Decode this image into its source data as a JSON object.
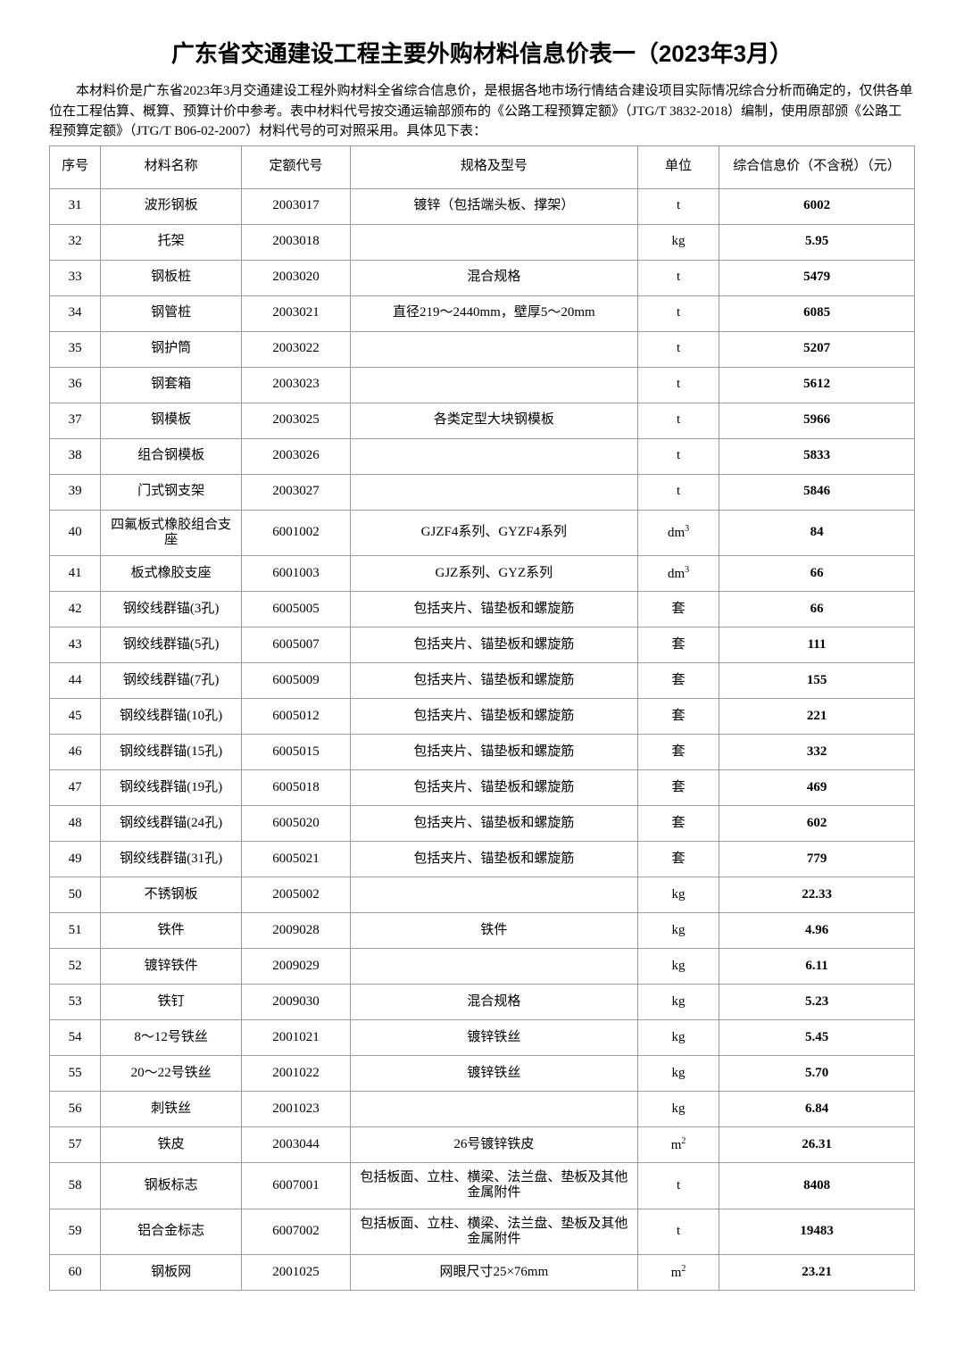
{
  "title": "广东省交通建设工程主要外购材料信息价表一（2023年3月）",
  "intro": "本材料价是广东省2023年3月交通建设工程外购材料全省综合信息价，是根据各地市场行情结合建设项目实际情况综合分析而确定的，仅供各单位在工程估算、概算、预算计价中参考。表中材料代号按交通运输部颁布的《公路工程预算定额》（JTG/T 3832-2018）编制，使用原部颁《公路工程预算定额》（JTG/T B06-02-2007）材料代号的可对照采用。具体见下表：",
  "columns": {
    "seq": "序号",
    "name": "材料名称",
    "code": "定额代号",
    "spec": "规格及型号",
    "unit": "单位",
    "price": "综合信息价（不含税）（元）"
  },
  "rows": [
    {
      "seq": "31",
      "name": "波形钢板",
      "code": "2003017",
      "spec": "镀锌（包括端头板、撑架）",
      "unit": "t",
      "price": "6002"
    },
    {
      "seq": "32",
      "name": "托架",
      "code": "2003018",
      "spec": "",
      "unit": "kg",
      "price": "5.95"
    },
    {
      "seq": "33",
      "name": "钢板桩",
      "code": "2003020",
      "spec": "混合规格",
      "unit": "t",
      "price": "5479"
    },
    {
      "seq": "34",
      "name": "钢管桩",
      "code": "2003021",
      "spec": "直径219～2440mm，壁厚5～20mm",
      "unit": "t",
      "price": "6085"
    },
    {
      "seq": "35",
      "name": "钢护筒",
      "code": "2003022",
      "spec": "",
      "unit": "t",
      "price": "5207"
    },
    {
      "seq": "36",
      "name": "钢套箱",
      "code": "2003023",
      "spec": "",
      "unit": "t",
      "price": "5612"
    },
    {
      "seq": "37",
      "name": "钢模板",
      "code": "2003025",
      "spec": "各类定型大块钢模板",
      "unit": "t",
      "price": "5966"
    },
    {
      "seq": "38",
      "name": "组合钢模板",
      "code": "2003026",
      "spec": "",
      "unit": "t",
      "price": "5833"
    },
    {
      "seq": "39",
      "name": "门式钢支架",
      "code": "2003027",
      "spec": "",
      "unit": "t",
      "price": "5846"
    },
    {
      "seq": "40",
      "name": "四氟板式橡胶组合支座",
      "code": "6001002",
      "spec": "GJZF4系列、GYZF4系列",
      "unit": "dm³",
      "price": "84",
      "twoLine": true
    },
    {
      "seq": "41",
      "name": "板式橡胶支座",
      "code": "6001003",
      "spec": "GJZ系列、GYZ系列",
      "unit": "dm³",
      "price": "66"
    },
    {
      "seq": "42",
      "name": "钢绞线群锚(3孔)",
      "code": "6005005",
      "spec": "包括夹片、锚垫板和螺旋筋",
      "unit": "套",
      "price": "66"
    },
    {
      "seq": "43",
      "name": "钢绞线群锚(5孔)",
      "code": "6005007",
      "spec": "包括夹片、锚垫板和螺旋筋",
      "unit": "套",
      "price": "111"
    },
    {
      "seq": "44",
      "name": "钢绞线群锚(7孔)",
      "code": "6005009",
      "spec": "包括夹片、锚垫板和螺旋筋",
      "unit": "套",
      "price": "155"
    },
    {
      "seq": "45",
      "name": "钢绞线群锚(10孔)",
      "code": "6005012",
      "spec": "包括夹片、锚垫板和螺旋筋",
      "unit": "套",
      "price": "221",
      "twoLine": true
    },
    {
      "seq": "46",
      "name": "钢绞线群锚(15孔)",
      "code": "6005015",
      "spec": "包括夹片、锚垫板和螺旋筋",
      "unit": "套",
      "price": "332",
      "twoLine": true
    },
    {
      "seq": "47",
      "name": "钢绞线群锚(19孔)",
      "code": "6005018",
      "spec": "包括夹片、锚垫板和螺旋筋",
      "unit": "套",
      "price": "469",
      "twoLine": true
    },
    {
      "seq": "48",
      "name": "钢绞线群锚(24孔)",
      "code": "6005020",
      "spec": "包括夹片、锚垫板和螺旋筋",
      "unit": "套",
      "price": "602",
      "twoLine": true
    },
    {
      "seq": "49",
      "name": "钢绞线群锚(31孔)",
      "code": "6005021",
      "spec": "包括夹片、锚垫板和螺旋筋",
      "unit": "套",
      "price": "779",
      "twoLine": true
    },
    {
      "seq": "50",
      "name": "不锈钢板",
      "code": "2005002",
      "spec": "",
      "unit": "kg",
      "price": "22.33"
    },
    {
      "seq": "51",
      "name": "铁件",
      "code": "2009028",
      "spec": "铁件",
      "unit": "kg",
      "price": "4.96"
    },
    {
      "seq": "52",
      "name": "镀锌铁件",
      "code": "2009029",
      "spec": "",
      "unit": "kg",
      "price": "6.11"
    },
    {
      "seq": "53",
      "name": "铁钉",
      "code": "2009030",
      "spec": "混合规格",
      "unit": "kg",
      "price": "5.23"
    },
    {
      "seq": "54",
      "name": "8～12号铁丝",
      "code": "2001021",
      "spec": "镀锌铁丝",
      "unit": "kg",
      "price": "5.45"
    },
    {
      "seq": "55",
      "name": "20～22号铁丝",
      "code": "2001022",
      "spec": "镀锌铁丝",
      "unit": "kg",
      "price": "5.70"
    },
    {
      "seq": "56",
      "name": "刺铁丝",
      "code": "2001023",
      "spec": "",
      "unit": "kg",
      "price": "6.84"
    },
    {
      "seq": "57",
      "name": "铁皮",
      "code": "2003044",
      "spec": "26号镀锌铁皮",
      "unit": "m²",
      "price": "26.31"
    },
    {
      "seq": "58",
      "name": "钢板标志",
      "code": "6007001",
      "spec": "包括板面、立柱、横梁、法兰盘、垫板及其他金属附件",
      "unit": "t",
      "price": "8408",
      "specTwoLine": true
    },
    {
      "seq": "59",
      "name": "铝合金标志",
      "code": "6007002",
      "spec": "包括板面、立柱、横梁、法兰盘、垫板及其他金属附件",
      "unit": "t",
      "price": "19483",
      "specTwoLine": true
    },
    {
      "seq": "60",
      "name": "钢板网",
      "code": "2001025",
      "spec": "网眼尺寸25×76mm",
      "unit": "m²",
      "price": "23.21"
    }
  ],
  "style": {
    "background_color": "#ffffff",
    "border_color": "#999999",
    "text_color": "#000000",
    "title_fontsize": 26,
    "body_fontsize": 15,
    "col_widths": {
      "seq": 47,
      "name": 130,
      "code": 100,
      "spec": 265,
      "unit": 75,
      "price": 180
    }
  }
}
